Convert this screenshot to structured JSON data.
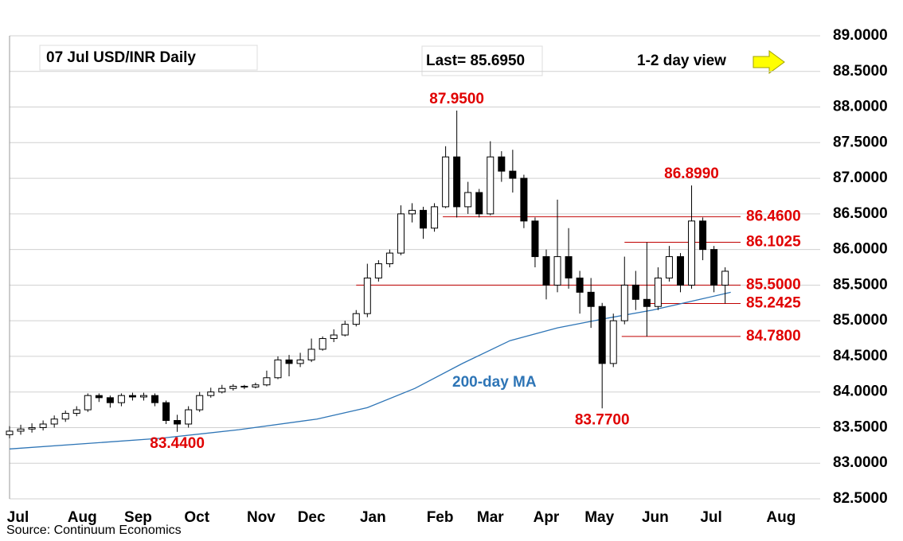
{
  "chart_data": {
    "type": "candlestick",
    "title": "07 Jul  USD/INR  Daily",
    "last_label": "Last= 85.6950",
    "view_label": "1-2 day view",
    "source": "Source: Continuum Economics",
    "xlim": [
      0,
      290
    ],
    "xticks": [
      {
        "value": 3,
        "label": "Jul"
      },
      {
        "value": 26,
        "label": "Aug"
      },
      {
        "value": 46,
        "label": "Sep"
      },
      {
        "value": 67,
        "label": "Oct"
      },
      {
        "value": 90,
        "label": "Nov"
      },
      {
        "value": 108,
        "label": "Dec"
      },
      {
        "value": 130,
        "label": "Jan"
      },
      {
        "value": 154,
        "label": "Feb"
      },
      {
        "value": 172,
        "label": "Mar"
      },
      {
        "value": 192,
        "label": "Apr"
      },
      {
        "value": 211,
        "label": "May"
      },
      {
        "value": 231,
        "label": "Jun"
      },
      {
        "value": 251,
        "label": "Jul"
      },
      {
        "value": 276,
        "label": "Aug"
      }
    ],
    "ylim": [
      82.5,
      89.0
    ],
    "yticks": [
      {
        "value": 82.5,
        "label": "82.5000"
      },
      {
        "value": 83,
        "label": "83.0000"
      },
      {
        "value": 83.5,
        "label": "83.5000"
      },
      {
        "value": 84,
        "label": "84.0000"
      },
      {
        "value": 84.5,
        "label": "84.5000"
      },
      {
        "value": 85,
        "label": "85.0000"
      },
      {
        "value": 85.5,
        "label": "85.5000"
      },
      {
        "value": 86,
        "label": "86.0000"
      },
      {
        "value": 86.5,
        "label": "86.5000"
      },
      {
        "value": 87,
        "label": "87.0000"
      },
      {
        "value": 87.5,
        "label": "87.5000"
      },
      {
        "value": 88,
        "label": "88.0000"
      },
      {
        "value": 88.5,
        "label": "88.5000"
      },
      {
        "value": 89,
        "label": "89.0000"
      }
    ],
    "grid": true,
    "x": [
      0,
      4,
      8,
      12,
      16,
      20,
      24,
      28,
      32,
      36,
      40,
      44,
      48,
      52,
      56,
      60,
      64,
      68,
      72,
      76,
      80,
      84,
      88,
      92,
      96,
      100,
      104,
      108,
      112,
      116,
      120,
      124,
      128,
      132,
      136,
      140,
      144,
      148,
      152,
      156,
      160,
      164,
      168,
      172,
      176,
      180,
      184,
      188,
      192,
      196,
      200,
      204,
      208,
      212,
      216,
      220,
      224,
      228,
      232,
      236,
      240,
      244,
      248,
      252,
      256
    ],
    "ohlc": [
      [
        83.4,
        83.52,
        83.35,
        83.45
      ],
      [
        83.45,
        83.54,
        83.4,
        83.48
      ],
      [
        83.48,
        83.56,
        83.43,
        83.5
      ],
      [
        83.5,
        83.6,
        83.46,
        83.55
      ],
      [
        83.55,
        83.67,
        83.5,
        83.62
      ],
      [
        83.62,
        83.74,
        83.58,
        83.7
      ],
      [
        83.7,
        83.8,
        83.66,
        83.75
      ],
      [
        83.75,
        83.98,
        83.72,
        83.95
      ],
      [
        83.95,
        83.98,
        83.86,
        83.92
      ],
      [
        83.92,
        83.95,
        83.78,
        83.85
      ],
      [
        83.85,
        83.98,
        83.8,
        83.95
      ],
      [
        83.95,
        83.99,
        83.88,
        83.93
      ],
      [
        83.93,
        83.99,
        83.88,
        83.95
      ],
      [
        83.95,
        83.98,
        83.8,
        83.85
      ],
      [
        83.85,
        83.88,
        83.55,
        83.6
      ],
      [
        83.6,
        83.68,
        83.44,
        83.55
      ],
      [
        83.55,
        83.8,
        83.5,
        83.75
      ],
      [
        83.75,
        84.0,
        83.72,
        83.95
      ],
      [
        83.95,
        84.06,
        83.92,
        84.0
      ],
      [
        84.0,
        84.1,
        83.98,
        84.05
      ],
      [
        84.05,
        84.11,
        84.02,
        84.08
      ],
      [
        84.08,
        84.1,
        84.04,
        84.07
      ],
      [
        84.07,
        84.13,
        84.05,
        84.1
      ],
      [
        84.1,
        84.3,
        84.08,
        84.2
      ],
      [
        84.2,
        84.5,
        84.18,
        84.45
      ],
      [
        84.45,
        84.52,
        84.22,
        84.4
      ],
      [
        84.4,
        84.55,
        84.35,
        84.45
      ],
      [
        84.45,
        84.75,
        84.42,
        84.6
      ],
      [
        84.6,
        84.78,
        84.58,
        84.75
      ],
      [
        84.75,
        84.88,
        84.7,
        84.8
      ],
      [
        84.8,
        85.0,
        84.78,
        84.95
      ],
      [
        84.95,
        85.15,
        84.92,
        85.1
      ],
      [
        85.1,
        85.8,
        85.05,
        85.6
      ],
      [
        85.6,
        85.85,
        85.55,
        85.8
      ],
      [
        85.8,
        86.0,
        85.75,
        85.95
      ],
      [
        85.95,
        86.62,
        85.92,
        86.5
      ],
      [
        86.5,
        86.65,
        86.38,
        86.55
      ],
      [
        86.55,
        86.6,
        86.15,
        86.3
      ],
      [
        86.3,
        86.65,
        86.25,
        86.6
      ],
      [
        86.6,
        87.45,
        86.58,
        87.3
      ],
      [
        87.3,
        87.95,
        86.45,
        86.6
      ],
      [
        86.6,
        86.95,
        86.5,
        86.8
      ],
      [
        86.8,
        86.85,
        86.45,
        86.5
      ],
      [
        86.5,
        87.52,
        86.48,
        87.3
      ],
      [
        87.3,
        87.38,
        86.95,
        87.1
      ],
      [
        87.1,
        87.4,
        86.8,
        87.0
      ],
      [
        87.0,
        87.05,
        86.3,
        86.4
      ],
      [
        86.4,
        86.45,
        85.75,
        85.9
      ],
      [
        85.9,
        86.0,
        85.3,
        85.5
      ],
      [
        85.5,
        86.7,
        85.4,
        85.9
      ],
      [
        85.9,
        86.3,
        85.45,
        85.6
      ],
      [
        85.6,
        85.7,
        85.1,
        85.4
      ],
      [
        85.4,
        85.6,
        84.9,
        85.2
      ],
      [
        85.2,
        85.25,
        83.77,
        84.4
      ],
      [
        84.4,
        85.1,
        84.35,
        85.0
      ],
      [
        85.0,
        85.9,
        84.95,
        85.5
      ],
      [
        85.5,
        85.7,
        85.15,
        85.3
      ],
      [
        85.3,
        86.1,
        84.78,
        85.2
      ],
      [
        85.2,
        85.75,
        85.15,
        85.6
      ],
      [
        85.6,
        86.05,
        85.55,
        85.9
      ],
      [
        85.9,
        85.95,
        85.4,
        85.5
      ],
      [
        85.5,
        86.899,
        85.45,
        86.4
      ],
      [
        86.4,
        86.45,
        85.85,
        86.0
      ],
      [
        86.0,
        86.05,
        85.4,
        85.5
      ],
      [
        85.5,
        85.75,
        85.2425,
        85.695
      ]
    ],
    "ma": {
      "name": "200-day MA",
      "color": "#2e75b6",
      "x": [
        0,
        54,
        82,
        110,
        128,
        145,
        162,
        179,
        196,
        213,
        230,
        247,
        258
      ],
      "values": [
        83.2,
        83.35,
        83.47,
        83.62,
        83.78,
        84.05,
        84.4,
        84.72,
        84.9,
        85.03,
        85.15,
        85.3,
        85.4
      ]
    },
    "levels": [
      {
        "value": 86.46,
        "label": "86.4600",
        "start": 155
      },
      {
        "value": 86.1025,
        "label": "86.1025",
        "start": 220
      },
      {
        "value": 85.5,
        "label": "85.5000",
        "start": 124
      },
      {
        "value": 85.2425,
        "label": "85.2425",
        "start": 229
      },
      {
        "value": 84.78,
        "label": "84.7800",
        "start": 219
      }
    ],
    "annotations": [
      {
        "x": 160,
        "value": 87.95,
        "label": "87.9500",
        "pos": "above"
      },
      {
        "x": 244,
        "value": 86.899,
        "label": "86.8990",
        "pos": "above"
      },
      {
        "x": 212,
        "value": 83.77,
        "label": "83.7700",
        "pos": "below"
      },
      {
        "x": 60,
        "value": 83.44,
        "label": "83.4400",
        "pos": "below"
      }
    ]
  }
}
